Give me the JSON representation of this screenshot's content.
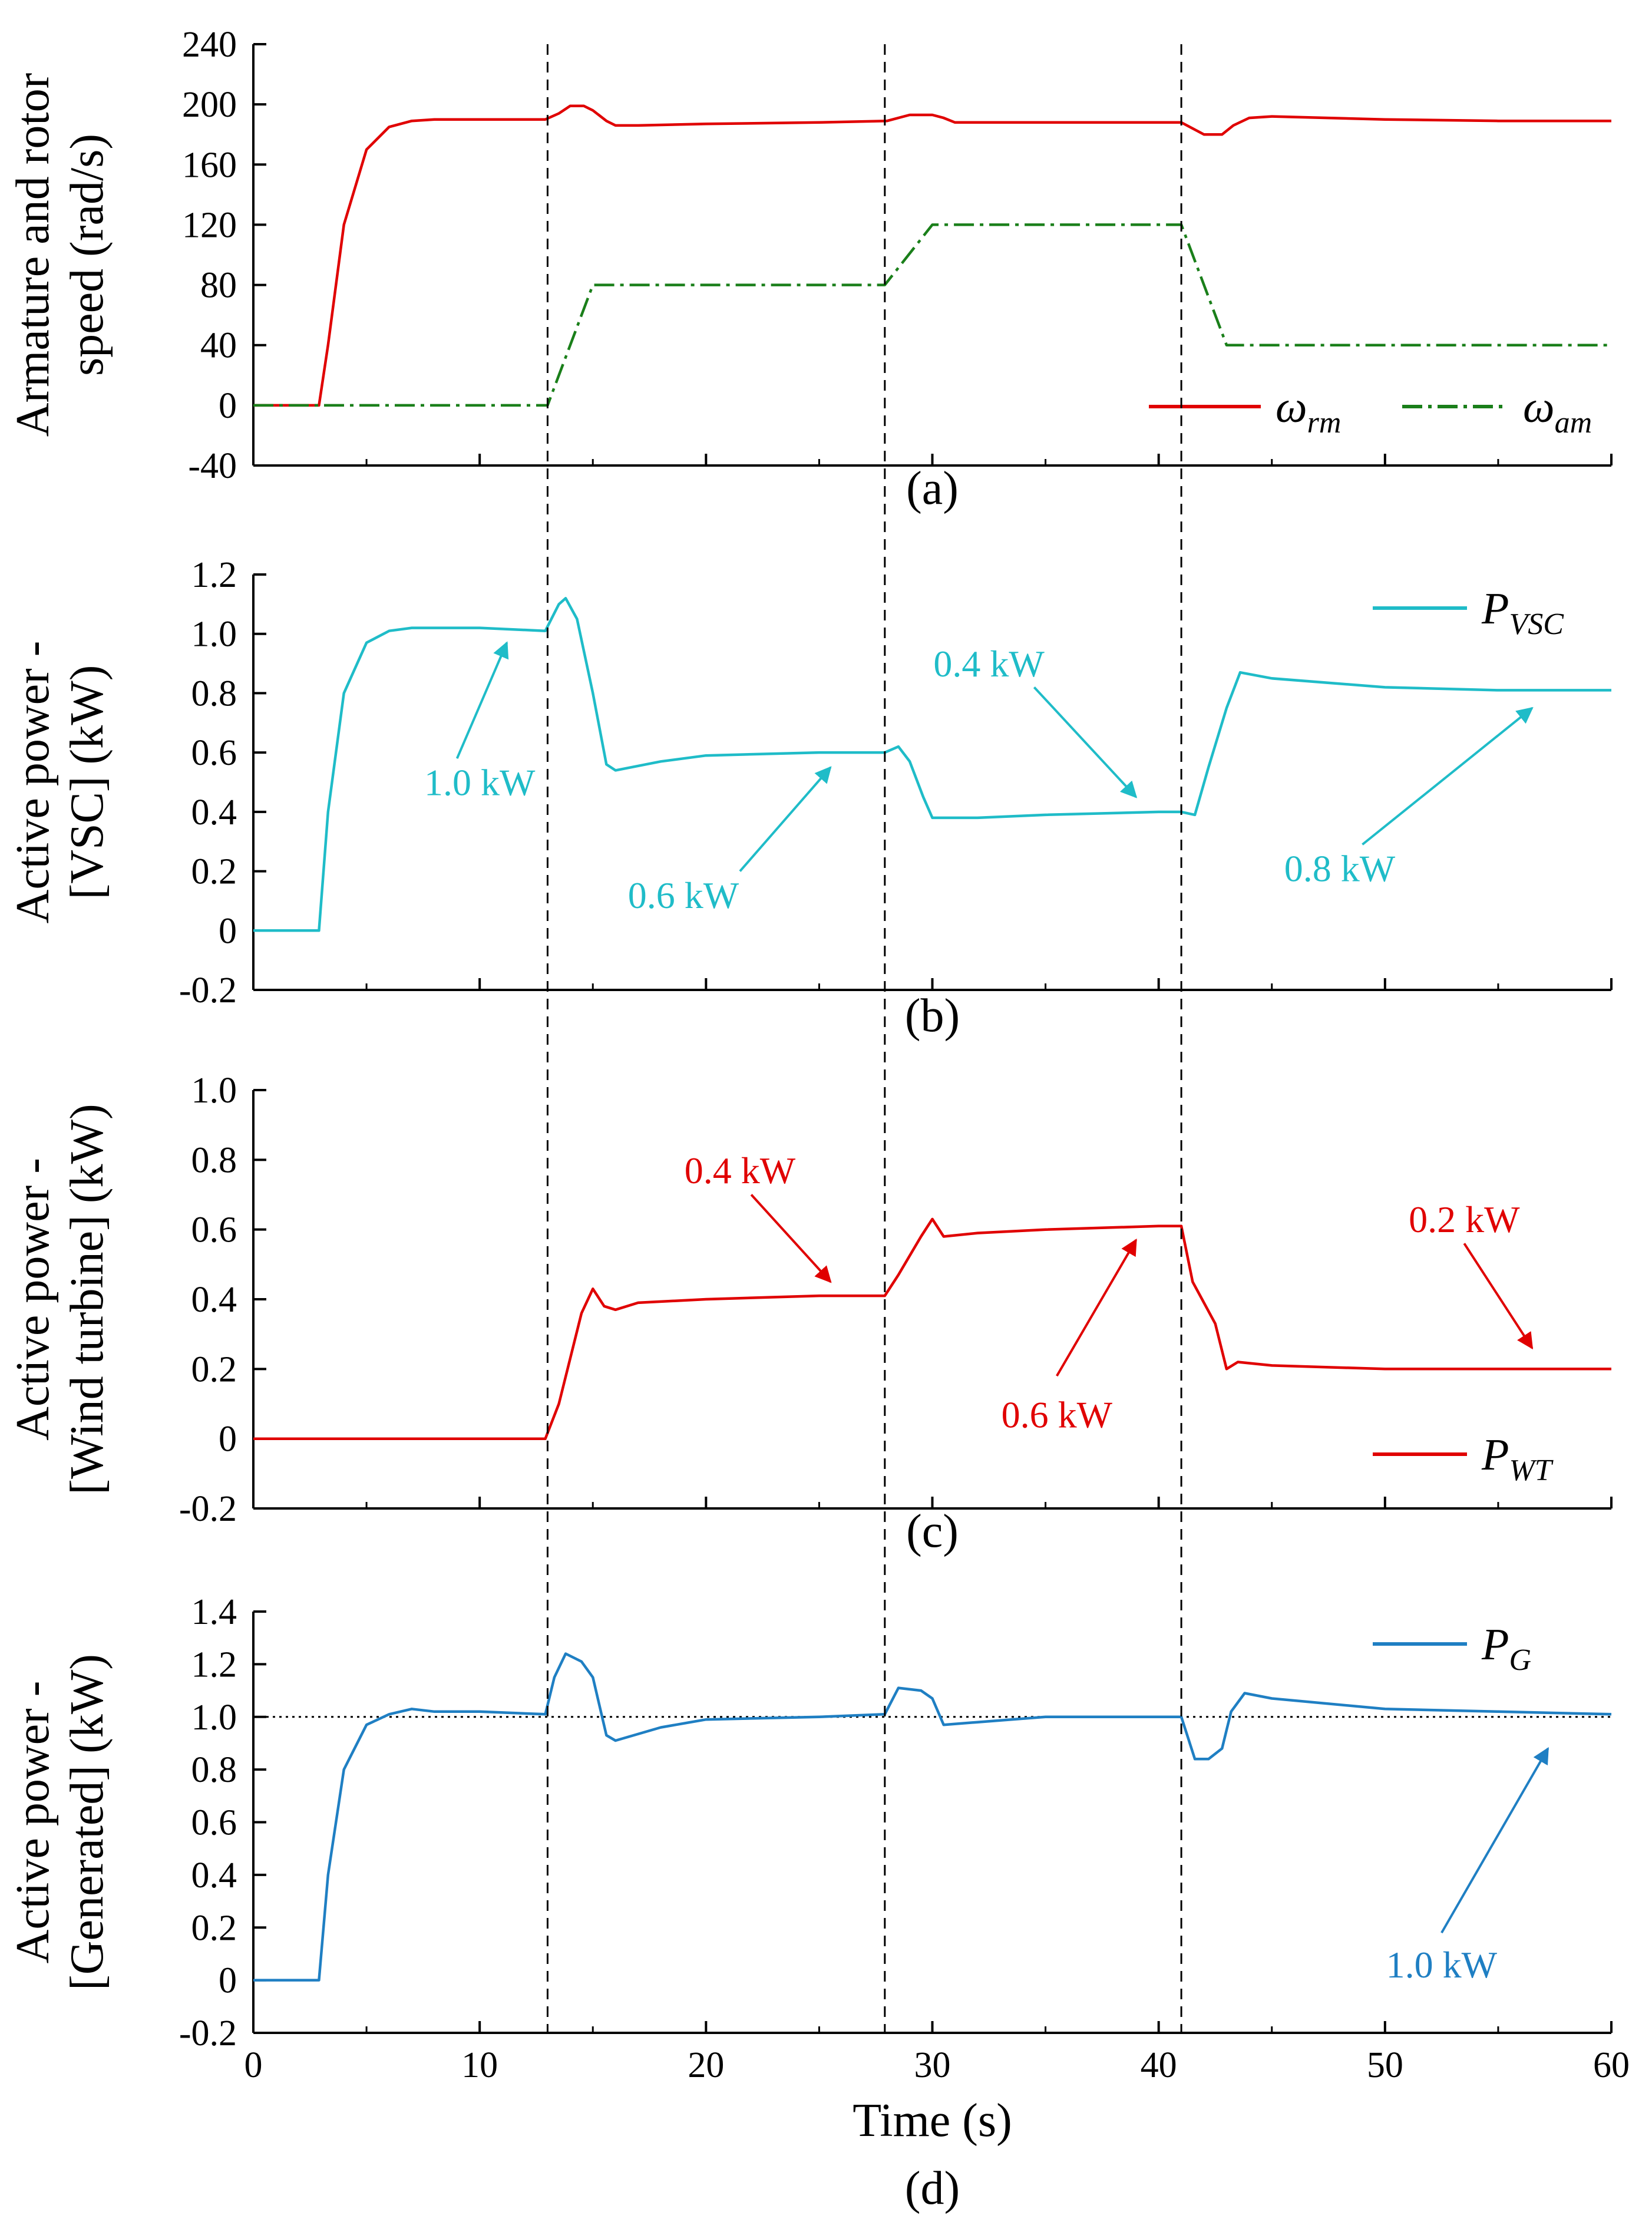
{
  "chart_data": [
    {
      "panel": "(a)",
      "type": "line",
      "ylabel": [
        "Armature and rotor",
        "speed (rad/s)"
      ],
      "ylim": [
        -40,
        240
      ],
      "yticks": [
        -40,
        0,
        40,
        80,
        120,
        160,
        200,
        240
      ],
      "series": [
        {
          "name": "ω_rm",
          "color": "#e00000",
          "style": "solid",
          "x": [
            0,
            2.9,
            3.3,
            4,
            5,
            6,
            7,
            8,
            10,
            12.9,
            13.5,
            14,
            14.6,
            15,
            15.6,
            16,
            17,
            20,
            25,
            28,
            29,
            30,
            30.5,
            31,
            32,
            35,
            40,
            41,
            41.5,
            42,
            42.8,
            43.3,
            44,
            45,
            50,
            55,
            60
          ],
          "y": [
            0,
            0,
            40,
            120,
            170,
            185,
            189,
            190,
            190,
            190,
            194,
            199,
            199,
            196,
            189,
            186,
            186,
            187,
            188,
            189,
            193,
            193,
            191,
            188,
            188,
            188,
            188,
            188,
            184,
            180,
            180,
            186,
            191,
            192,
            190,
            189,
            189
          ]
        },
        {
          "name": "ω_am",
          "color": "#1a7f1a",
          "style": "dashdot",
          "x": [
            0,
            13,
            15,
            27.9,
            30,
            41,
            43,
            60
          ],
          "y": [
            0,
            0,
            80,
            80,
            120,
            120,
            40,
            40
          ]
        }
      ],
      "legend": [
        {
          "label": "ω",
          "sub": "rm",
          "color": "#e00000",
          "style": "solid"
        },
        {
          "label": "ω",
          "sub": "am",
          "color": "#1a7f1a",
          "style": "dashdot"
        }
      ]
    },
    {
      "panel": "(b)",
      "type": "line",
      "ylabel": [
        "Active power -",
        "[VSC] (kW)"
      ],
      "ylim": [
        -0.2,
        1.2
      ],
      "yticks": [
        -0.2,
        0,
        0.2,
        0.4,
        0.6,
        0.8,
        1.0,
        1.2
      ],
      "ytick_labels": [
        "-0.2",
        "0",
        "0.2",
        "0.4",
        "0.6",
        "0.8",
        "1.0",
        "1.2"
      ],
      "series": [
        {
          "name": "P_VSC",
          "color": "#1fbcc8",
          "style": "solid",
          "x": [
            0,
            2.9,
            3.3,
            4,
            5,
            6,
            7,
            8,
            10,
            12.9,
            13.5,
            13.8,
            14.3,
            15,
            15.6,
            16,
            18,
            20,
            25,
            27.9,
            28.5,
            29,
            29.6,
            30,
            32,
            35,
            40,
            41,
            41.6,
            42.2,
            43,
            43.6,
            45,
            50,
            55,
            60
          ],
          "y": [
            0,
            0,
            0.4,
            0.8,
            0.97,
            1.01,
            1.02,
            1.02,
            1.02,
            1.01,
            1.1,
            1.12,
            1.05,
            0.8,
            0.56,
            0.54,
            0.57,
            0.59,
            0.6,
            0.6,
            0.62,
            0.57,
            0.45,
            0.38,
            0.38,
            0.39,
            0.4,
            0.4,
            0.39,
            0.55,
            0.75,
            0.87,
            0.85,
            0.82,
            0.81,
            0.81
          ]
        }
      ],
      "legend": [
        {
          "label": "P",
          "sub": "VSC",
          "color": "#1fbcc8",
          "style": "solid"
        }
      ],
      "annotations": [
        {
          "text": "1.0 kW",
          "text_x": 10,
          "text_y": 0.5,
          "arrow_from": [
            9,
            0.58
          ],
          "arrow_to": [
            11.2,
            0.97
          ]
        },
        {
          "text": "0.6 kW",
          "text_x": 19,
          "text_y": 0.12,
          "arrow_from": [
            21.5,
            0.2
          ],
          "arrow_to": [
            25.5,
            0.55
          ]
        },
        {
          "text": "0.4 kW",
          "text_x": 32.5,
          "text_y": 0.9,
          "arrow_from": [
            34.5,
            0.82
          ],
          "arrow_to": [
            39,
            0.45
          ]
        },
        {
          "text": "0.8 kW",
          "text_x": 48,
          "text_y": 0.21,
          "arrow_from": [
            49,
            0.29
          ],
          "arrow_to": [
            56.5,
            0.75
          ]
        }
      ]
    },
    {
      "panel": "(c)",
      "type": "line",
      "ylabel": [
        "Active power -",
        "[Wind turbine] (kW)"
      ],
      "ylim": [
        -0.2,
        1.0
      ],
      "yticks": [
        -0.2,
        0,
        0.2,
        0.4,
        0.6,
        0.8,
        1.0
      ],
      "ytick_labels": [
        "-0.2",
        "0",
        "0.2",
        "0.4",
        "0.6",
        "0.8",
        "1.0"
      ],
      "series": [
        {
          "name": "P_WT",
          "color": "#e00000",
          "style": "solid",
          "x": [
            0,
            12.9,
            13.5,
            14.5,
            15,
            15.5,
            16,
            17,
            20,
            25,
            27.9,
            28.5,
            29.5,
            30,
            30.5,
            32,
            35,
            40,
            41,
            41.5,
            42.5,
            43,
            43.5,
            45,
            50,
            55,
            60
          ],
          "y": [
            0,
            0,
            0.1,
            0.36,
            0.43,
            0.38,
            0.37,
            0.39,
            0.4,
            0.41,
            0.41,
            0.47,
            0.58,
            0.63,
            0.58,
            0.59,
            0.6,
            0.61,
            0.61,
            0.45,
            0.33,
            0.2,
            0.22,
            0.21,
            0.2,
            0.2,
            0.2
          ]
        }
      ],
      "legend": [
        {
          "label": "P",
          "sub": "WT",
          "color": "#e00000",
          "style": "solid"
        }
      ],
      "annotations": [
        {
          "text": "0.4 kW",
          "text_x": 21.5,
          "text_y": 0.77,
          "arrow_from": [
            22,
            0.7
          ],
          "arrow_to": [
            25.5,
            0.45
          ]
        },
        {
          "text": "0.6 kW",
          "text_x": 35.5,
          "text_y": 0.07,
          "arrow_from": [
            35.5,
            0.18
          ],
          "arrow_to": [
            39,
            0.57
          ]
        },
        {
          "text": "0.2 kW",
          "text_x": 53.5,
          "text_y": 0.63,
          "arrow_from": [
            53.5,
            0.56
          ],
          "arrow_to": [
            56.5,
            0.26
          ]
        }
      ]
    },
    {
      "panel": "(d)",
      "type": "line",
      "xlabel": "Time (s)",
      "ylabel": [
        "Active power -",
        "[Generated] (kW)"
      ],
      "xlim": [
        0,
        60
      ],
      "xticks": [
        0,
        10,
        20,
        30,
        40,
        50,
        60
      ],
      "ylim": [
        -0.2,
        1.4
      ],
      "yticks": [
        -0.2,
        0,
        0.2,
        0.4,
        0.6,
        0.8,
        1.0,
        1.2,
        1.4
      ],
      "ytick_labels": [
        "-0.2",
        "0",
        "0.2",
        "0.4",
        "0.6",
        "0.8",
        "1.0",
        "1.2",
        "1.4"
      ],
      "reference_line": 1.0,
      "series": [
        {
          "name": "P_G",
          "color": "#1f7fc3",
          "style": "solid",
          "x": [
            0,
            2.9,
            3.3,
            4,
            5,
            6,
            7,
            8,
            10,
            12.9,
            13.3,
            13.8,
            14.5,
            15,
            15.6,
            16,
            18,
            20,
            25,
            27.9,
            28.5,
            29.5,
            30,
            30.5,
            32,
            35,
            40,
            41,
            41.6,
            42.2,
            42.8,
            43.2,
            43.8,
            45,
            50,
            55,
            60
          ],
          "y": [
            0,
            0,
            0.4,
            0.8,
            0.97,
            1.01,
            1.03,
            1.02,
            1.02,
            1.01,
            1.15,
            1.24,
            1.21,
            1.15,
            0.93,
            0.91,
            0.96,
            0.99,
            1.0,
            1.01,
            1.11,
            1.1,
            1.07,
            0.97,
            0.98,
            1.0,
            1.0,
            1.0,
            0.84,
            0.84,
            0.88,
            1.02,
            1.09,
            1.07,
            1.03,
            1.02,
            1.01
          ]
        }
      ],
      "legend": [
        {
          "label": "P",
          "sub": "G",
          "color": "#1f7fc3",
          "style": "solid"
        }
      ],
      "annotations": [
        {
          "text": "1.0 kW",
          "text_x": 52.5,
          "text_y": 0.06,
          "arrow_from": [
            52.5,
            0.18
          ],
          "arrow_to": [
            57.2,
            0.88
          ]
        }
      ]
    }
  ],
  "events": {
    "dashed_lines_x": [
      13,
      27.9,
      41
    ]
  },
  "xticks_labels": [
    "0",
    "10",
    "20",
    "30",
    "40",
    "50",
    "60"
  ]
}
